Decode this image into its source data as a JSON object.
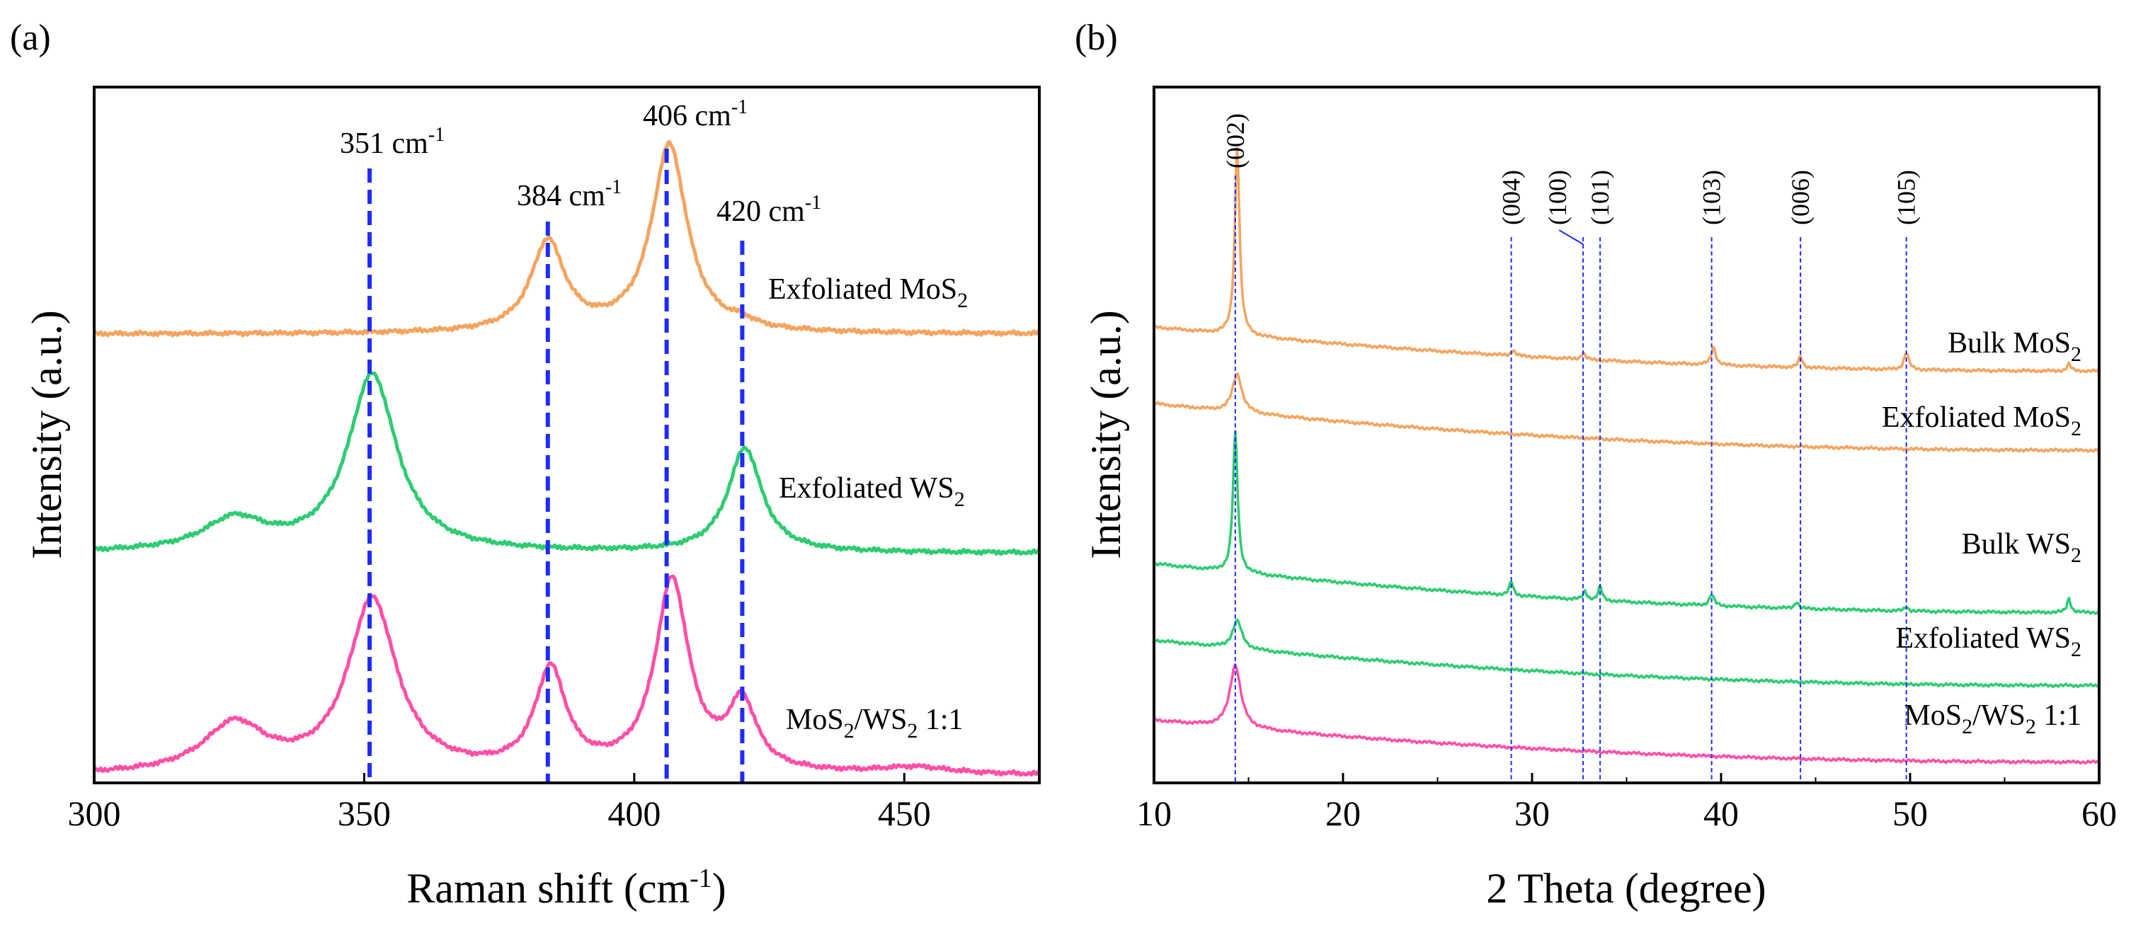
{
  "figure": {
    "panels": [
      "(a)",
      "(b)"
    ]
  },
  "chart_data": [
    {
      "type": "line",
      "panel": "(a)",
      "title": "",
      "xlabel": "Raman shift",
      "xlabel_unit_open": "(cm",
      "xlabel_unit_sup": "-1",
      "xlabel_unit_close": ")",
      "ylabel": "Intensity (a.u.)",
      "xlim": [
        300,
        475
      ],
      "ylim": [
        0,
        1
      ],
      "xticks": [
        "300",
        "350",
        "400",
        "450"
      ],
      "colors": {
        "Exfoliated MoS2": "#F4A460",
        "Exfoliated WS2": "#2ECC71",
        "MoS2/WS2 1:1": "#FF4FA6",
        "guides": "#1E2BFF"
      },
      "reference_lines": [
        {
          "x": 351,
          "text": "351 cm",
          "sup": "-1"
        },
        {
          "x": 384,
          "text": "384 cm",
          "sup": "-1"
        },
        {
          "x": 406,
          "text": "406 cm",
          "sup": "-1"
        },
        {
          "x": 420,
          "text": "420 cm",
          "sup": "-1"
        }
      ],
      "series": [
        {
          "name": "Exfoliated MoS2",
          "label_text": "Exfoliated MoS",
          "label_sub": "2",
          "baseline": 0.645,
          "peaks": [
            {
              "center": 384,
              "width": 3.8,
              "height": 0.13
            },
            {
              "center": 406.5,
              "width": 4.0,
              "height": 0.27
            },
            {
              "center": 420,
              "width": 2.5,
              "height": 0.008
            }
          ]
        },
        {
          "name": "Exfoliated WS2",
          "label_text": "Exfoliated WS",
          "label_sub": "2",
          "baseline": 0.33,
          "peaks": [
            {
              "center": 326,
              "width": 7.0,
              "height": 0.045
            },
            {
              "center": 351.5,
              "width": 5.5,
              "height": 0.255
            },
            {
              "center": 420.5,
              "width": 3.8,
              "height": 0.15
            }
          ]
        },
        {
          "name": "MoS2/WS2 1:1",
          "label_text_a": "MoS",
          "label_sub_a": "2",
          "label_text_b": "/WS",
          "label_sub_b": "2",
          "label_text_c": " 1:1",
          "baseline": 0.01,
          "peaks": [
            {
              "center": 326,
              "width": 7.0,
              "height": 0.07
            },
            {
              "center": 351.5,
              "width": 5.5,
              "height": 0.25
            },
            {
              "center": 384.5,
              "width": 3.5,
              "height": 0.145
            },
            {
              "center": 407,
              "width": 3.8,
              "height": 0.275
            },
            {
              "center": 420,
              "width": 3.2,
              "height": 0.095
            },
            {
              "center": 452,
              "width": 8.0,
              "height": 0.01
            }
          ]
        }
      ]
    },
    {
      "type": "line",
      "panel": "(b)",
      "title": "",
      "xlabel": "2 Theta (degree)",
      "ylabel": "Intensity (a.u.)",
      "xlim": [
        10,
        60
      ],
      "ylim": [
        0,
        1
      ],
      "xticks": [
        "10",
        "20",
        "30",
        "40",
        "50",
        "60"
      ],
      "colors": {
        "MoS2": "#F4A460",
        "WS2": "#2ECC71",
        "MoS2/WS2 1:1": "#FF4FA6",
        "guides": "#1E2BFF"
      },
      "reference_lines": [
        {
          "x": 14.3,
          "label": "(002)"
        },
        {
          "x": 28.9,
          "label": "(004)"
        },
        {
          "x": 32.7,
          "label": "(100)"
        },
        {
          "x": 33.6,
          "label": "(101)"
        },
        {
          "x": 39.5,
          "label": "(103)"
        },
        {
          "x": 44.2,
          "label": "(006)"
        },
        {
          "x": 49.8,
          "label": "(105)"
        }
      ],
      "series": [
        {
          "name": "Bulk MoS2",
          "label_text": "Bulk MoS",
          "label_sub": "2",
          "baseline_start": 0.655,
          "baseline_end": 0.592,
          "peaks": [
            {
              "center": 14.4,
              "width": 0.15,
              "height": 0.27
            },
            {
              "center": 29.0,
              "width": 0.12,
              "height": 0.008
            },
            {
              "center": 32.7,
              "width": 0.12,
              "height": 0.01
            },
            {
              "center": 39.6,
              "width": 0.15,
              "height": 0.025
            },
            {
              "center": 44.2,
              "width": 0.12,
              "height": 0.016
            },
            {
              "center": 49.8,
              "width": 0.15,
              "height": 0.025
            },
            {
              "center": 58.4,
              "width": 0.12,
              "height": 0.01
            }
          ]
        },
        {
          "name": "Exfoliated MoS2",
          "label_text": "Exfoliated MoS",
          "label_sub": "2",
          "baseline_start": 0.545,
          "baseline_end": 0.478,
          "peaks": [
            {
              "center": 14.4,
              "width": 0.3,
              "height": 0.055
            }
          ]
        },
        {
          "name": "Bulk WS2",
          "label_text": "Bulk WS",
          "label_sub": "2",
          "baseline_start": 0.315,
          "baseline_end": 0.245,
          "peaks": [
            {
              "center": 14.3,
              "width": 0.15,
              "height": 0.2
            },
            {
              "center": 28.9,
              "width": 0.12,
              "height": 0.02
            },
            {
              "center": 32.8,
              "width": 0.12,
              "height": 0.012
            },
            {
              "center": 33.6,
              "width": 0.12,
              "height": 0.02
            },
            {
              "center": 39.5,
              "width": 0.15,
              "height": 0.016
            },
            {
              "center": 44.0,
              "width": 0.12,
              "height": 0.01
            },
            {
              "center": 49.8,
              "width": 0.12,
              "height": 0.006
            },
            {
              "center": 58.4,
              "width": 0.12,
              "height": 0.02
            }
          ]
        },
        {
          "name": "Exfoliated WS2",
          "label_text": "Exfoliated WS",
          "label_sub": "2",
          "baseline_start": 0.205,
          "baseline_end": 0.14,
          "peaks": [
            {
              "center": 14.4,
              "width": 0.3,
              "height": 0.04
            }
          ]
        },
        {
          "name": "MoS2/WS2 1:1",
          "label_text_a": "MoS",
          "label_sub_a": "2",
          "label_text_b": "/WS",
          "label_sub_b": "2",
          "label_text_c": " 1:1",
          "baseline_start": 0.09,
          "baseline_end": 0.03,
          "peaks": [
            {
              "center": 14.3,
              "width": 0.35,
              "height": 0.09
            }
          ]
        }
      ]
    }
  ]
}
